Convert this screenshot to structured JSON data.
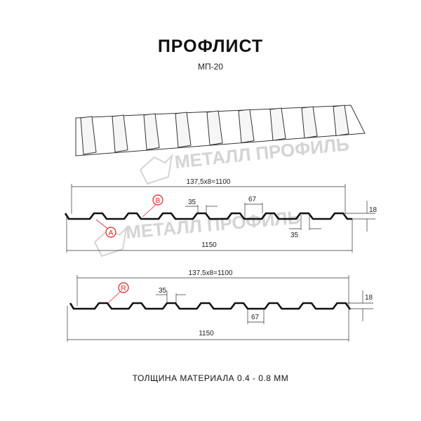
{
  "header": {
    "title": "ПРОФЛИСТ",
    "subtitle": "МП-20"
  },
  "watermark": "МЕТАЛЛ ПРОФИЛЬ",
  "profile_a": {
    "pitch_label": "137,5x8=1100",
    "total_label": "1150",
    "top_width": "35",
    "bottom_width_top": "67",
    "bottom_width": "35",
    "height": "18",
    "markers": [
      "A",
      "B"
    ]
  },
  "profile_r": {
    "pitch_label": "137.5x8=1100",
    "total_label": "1150",
    "top_width": "35",
    "bottom_width": "67",
    "height": "18",
    "markers": [
      "R"
    ]
  },
  "footer": {
    "note": "ТОЛЩИНА МАТЕРИАЛА 0.4 - 0.8 ММ"
  },
  "colors": {
    "line": "#111111",
    "marker": "#dd2222",
    "watermark": "#d4d4d4"
  }
}
